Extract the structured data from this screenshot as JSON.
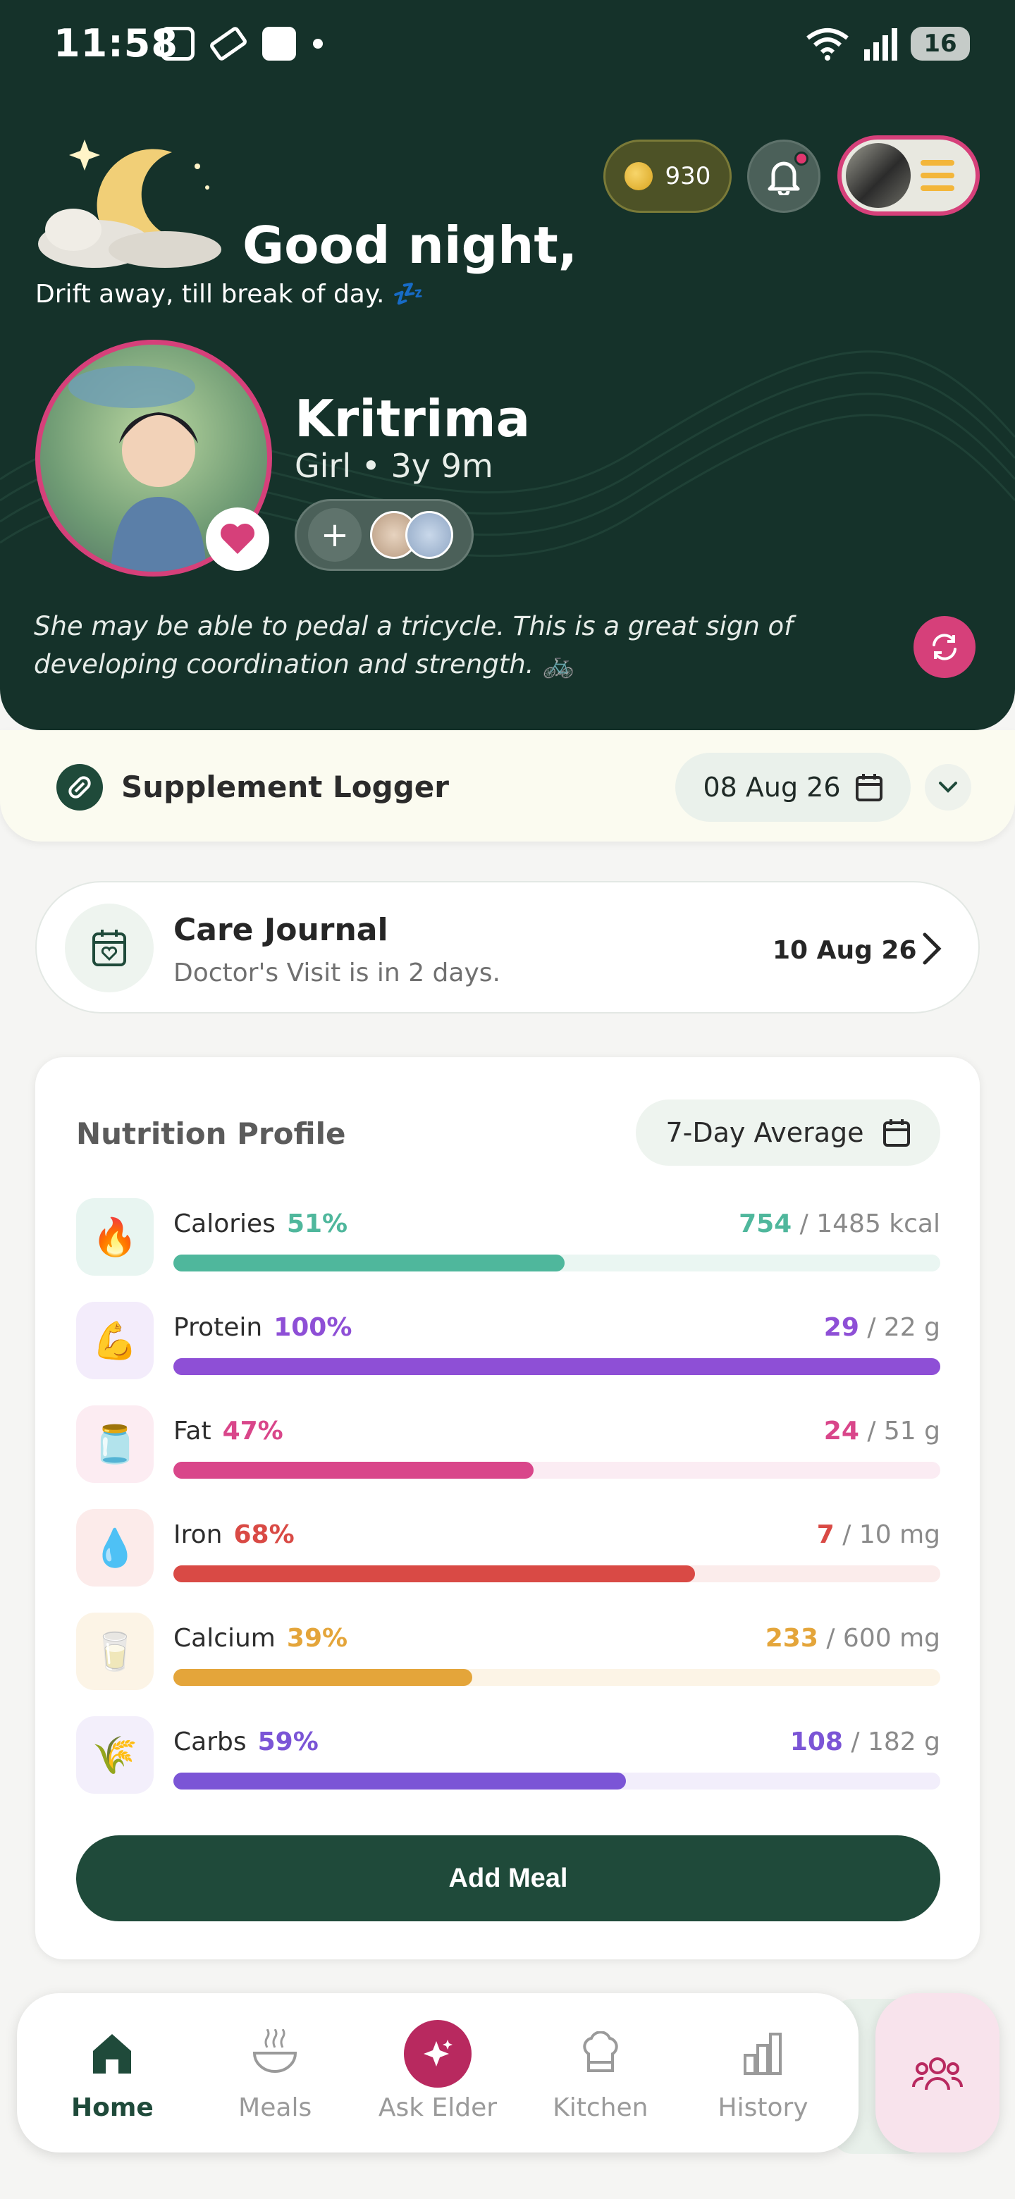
{
  "status_bar": {
    "time": "11:58",
    "battery": "16"
  },
  "header": {
    "coins": "930",
    "greeting": "Good night,",
    "subtitle": "Drift away, till break of day. 💤",
    "child": {
      "name": "Kritrima",
      "meta": "Girl • 3y 9m"
    },
    "milestone": "She may be able to pedal a tricycle. This is a great sign of developing coordination and strength. 🚲"
  },
  "supplement": {
    "title": "Supplement Logger",
    "date": "08 Aug 26"
  },
  "care_journal": {
    "title": "Care Journal",
    "subtitle": "Doctor's Visit is in 2 days.",
    "date": "10 Aug 26"
  },
  "nutrition": {
    "title": "Nutrition Profile",
    "range_label": "7-Day Average",
    "rows": [
      {
        "name": "Calories",
        "pct": "51%",
        "fraction": 0.51,
        "current": "754",
        "target": " / 1485 kcal",
        "color": "#4fb79c",
        "track": "#eaf6f2",
        "icon_bg": "#e8f5f1",
        "icon": "fire-icon"
      },
      {
        "name": "Protein",
        "pct": "100%",
        "fraction": 1.0,
        "current": "29",
        "target": " / 22 g",
        "color": "#8e4fd6",
        "track": "#f2ebfb",
        "icon_bg": "#f3ecfb",
        "icon": "muscle-icon"
      },
      {
        "name": "Fat",
        "pct": "47%",
        "fraction": 0.47,
        "current": "24",
        "target": " / 51 g",
        "color": "#d9468a",
        "track": "#fbecf3",
        "icon_bg": "#fcecf2",
        "icon": "oil-bottle-icon"
      },
      {
        "name": "Iron",
        "pct": "68%",
        "fraction": 0.68,
        "current": "7",
        "target": " / 10 mg",
        "color": "#d94a45",
        "track": "#fbeceb",
        "icon_bg": "#fcebea",
        "icon": "blood-drop-icon"
      },
      {
        "name": "Calcium",
        "pct": "39%",
        "fraction": 0.39,
        "current": "233",
        "target": " / 600 mg",
        "color": "#e4a53a",
        "track": "#fcf4e6",
        "icon_bg": "#fcf4e6",
        "icon": "milk-glass-icon"
      },
      {
        "name": "Carbs",
        "pct": "59%",
        "fraction": 0.59,
        "current": "108",
        "target": " / 182 g",
        "color": "#7b55d6",
        "track": "#f2eefb",
        "icon_bg": "#f3effb",
        "icon": "grain-icon"
      }
    ],
    "add_meal": "Add Meal"
  },
  "nav": {
    "items": [
      {
        "label": "Home",
        "icon": "home-icon"
      },
      {
        "label": "Meals",
        "icon": "bowl-icon"
      },
      {
        "label": "Ask Elder",
        "icon": "sparkle-icon"
      },
      {
        "label": "Kitchen",
        "icon": "chef-hat-icon"
      },
      {
        "label": "History",
        "icon": "bar-chart-icon"
      }
    ]
  },
  "colors": {
    "primary": "#1f4a3a",
    "header_bg": "#15322a",
    "accent": "#d6407a"
  }
}
